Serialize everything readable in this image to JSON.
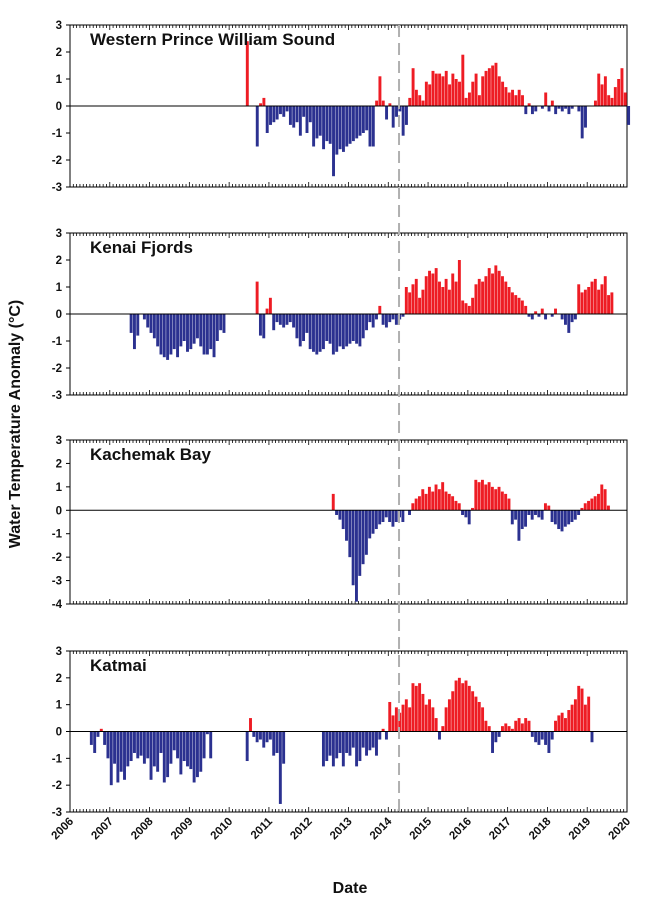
{
  "chart_data": {
    "type": "bar",
    "ylabel": "Water Temperature Anomaly (°C)",
    "xlabel": "Date",
    "x_ticks": [
      "2006",
      "2007",
      "2008",
      "2009",
      "2010",
      "2011",
      "2012",
      "2013",
      "2014",
      "2015",
      "2016",
      "2017",
      "2018",
      "2019",
      "2020"
    ],
    "x_range": [
      2006,
      2020
    ],
    "reference_line_year": 2014.27,
    "colors": {
      "positive": "#ee1c24",
      "negative": "#2b3190",
      "axis": "#000000",
      "dashed_line": "#b0b0b0"
    },
    "panels": [
      {
        "title": "Western Prince William Sound",
        "ylim": [
          -3,
          3
        ],
        "yticks": [
          "-3",
          "-2",
          "-1",
          "0",
          "1",
          "2",
          "3"
        ],
        "start": 2010.42,
        "values": [
          2.4,
          0,
          0,
          -1.5,
          0.1,
          0.3,
          -1.0,
          -0.7,
          -0.6,
          -0.5,
          -0.3,
          -0.4,
          -0.2,
          -0.7,
          -0.8,
          -0.6,
          -1.1,
          -0.4,
          -1.0,
          -0.6,
          -1.5,
          -1.2,
          -1.1,
          -1.6,
          -1.3,
          -1.4,
          -2.6,
          -1.8,
          -1.6,
          -1.7,
          -1.5,
          -1.4,
          -1.3,
          -1.2,
          -1.1,
          -1.0,
          -0.9,
          -1.5,
          -1.5,
          0.2,
          1.1,
          0.2,
          -0.5,
          0.1,
          -0.8,
          -0.4,
          -0.2,
          -1.1,
          -0.7,
          0.3,
          1.4,
          0.6,
          0.4,
          0.2,
          0.9,
          0.8,
          1.3,
          1.2,
          1.2,
          1.1,
          1.3,
          0.8,
          1.2,
          1.0,
          0.9,
          1.9,
          0.3,
          0.5,
          0.9,
          1.2,
          0.4,
          1.1,
          1.3,
          1.4,
          1.5,
          1.6,
          1.1,
          0.9,
          0.7,
          0.5,
          0.6,
          0.4,
          0.6,
          0.4,
          -0.3,
          0.1,
          -0.3,
          -0.2,
          0.0,
          -0.1,
          0.5,
          -0.2,
          0.2,
          -0.3,
          -0.1,
          -0.2,
          -0.1,
          -0.3,
          -0.1,
          0.0,
          -0.2,
          -1.2,
          -0.8,
          0.0,
          0.0,
          0.2,
          1.2,
          0.8,
          1.1,
          0.4,
          0.3,
          0.7,
          1.0,
          1.4,
          0.5,
          -0.7
        ]
      },
      {
        "title": "Kenai Fjords",
        "ylim": [
          -3,
          3
        ],
        "yticks": [
          "-3",
          "-2",
          "-1",
          "0",
          "1",
          "2",
          "3"
        ],
        "start": 2007.5,
        "values": [
          -0.7,
          -1.3,
          -0.8,
          0,
          -0.2,
          -0.5,
          -0.7,
          -0.9,
          -1.2,
          -1.5,
          -1.6,
          -1.7,
          -1.5,
          -1.3,
          -1.6,
          -1.2,
          -1.0,
          -1.4,
          -1.3,
          -1.1,
          -0.9,
          -1.2,
          -1.5,
          -1.5,
          -1.3,
          -1.6,
          -1.0,
          -0.6,
          -0.7,
          null,
          null,
          null,
          null,
          null,
          null,
          null,
          null,
          null,
          1.2,
          -0.8,
          -0.9,
          0.2,
          0.6,
          -0.6,
          -0.3,
          -0.4,
          -0.5,
          -0.4,
          -0.3,
          -0.5,
          -0.9,
          -1.2,
          -1.0,
          -0.7,
          -1.3,
          -1.4,
          -1.5,
          -1.4,
          -1.3,
          -1.0,
          -1.1,
          -1.5,
          -1.4,
          -1.2,
          -1.3,
          -1.2,
          -1.1,
          -1.0,
          -1.1,
          -1.2,
          -0.9,
          -0.6,
          -0.3,
          -0.5,
          -0.2,
          0.3,
          -0.4,
          -0.5,
          -0.3,
          -0.2,
          -0.4,
          -0.2,
          -0.1,
          1.0,
          0.8,
          1.1,
          1.3,
          0.6,
          0.9,
          1.4,
          1.6,
          1.5,
          1.7,
          1.2,
          1.0,
          1.3,
          0.9,
          1.5,
          1.2,
          2.0,
          0.5,
          0.4,
          0.3,
          0.6,
          1.1,
          1.3,
          1.2,
          1.4,
          1.7,
          1.5,
          1.8,
          1.6,
          1.4,
          1.2,
          1.0,
          0.8,
          0.7,
          0.6,
          0.5,
          0.3,
          -0.1,
          -0.2,
          0.1,
          -0.1,
          0.2,
          -0.2,
          0.0,
          -0.1,
          0.2,
          0.0,
          -0.2,
          -0.4,
          -0.7,
          -0.3,
          -0.2,
          1.1,
          0.8,
          0.9,
          1.0,
          1.2,
          1.3,
          0.9,
          1.1,
          1.4,
          0.7,
          0.8
        ]
      },
      {
        "title": "Kachemak Bay",
        "ylim": [
          -4,
          3
        ],
        "yticks": [
          "-4",
          "-3",
          "-2",
          "-1",
          "0",
          "1",
          "2",
          "3"
        ],
        "start": 2012.58,
        "values": [
          0.7,
          -0.2,
          -0.4,
          -0.8,
          -1.3,
          -2.0,
          -3.2,
          -3.9,
          -2.8,
          -2.3,
          -1.9,
          -1.2,
          -1.0,
          -0.8,
          -0.6,
          -0.5,
          -0.3,
          -0.5,
          -0.7,
          -0.5,
          -0.3,
          -0.5,
          0.0,
          -0.2,
          0.3,
          0.5,
          0.6,
          0.9,
          0.7,
          1.0,
          0.8,
          1.1,
          0.9,
          1.2,
          0.8,
          0.7,
          0.6,
          0.4,
          0.3,
          -0.2,
          -0.3,
          -0.6,
          0.1,
          1.3,
          1.2,
          1.3,
          1.1,
          1.2,
          1.0,
          0.9,
          1.0,
          0.8,
          0.7,
          0.5,
          -0.6,
          -0.4,
          -1.3,
          -0.8,
          -0.7,
          -0.2,
          -0.4,
          -0.2,
          -0.3,
          -0.4,
          0.3,
          0.2,
          -0.5,
          -0.6,
          -0.8,
          -0.9,
          -0.7,
          -0.6,
          -0.5,
          -0.4,
          -0.2,
          0.1,
          0.3,
          0.4,
          0.5,
          0.6,
          0.7,
          1.1,
          0.9,
          0.2
        ]
      },
      {
        "title": "Katmai",
        "ylim": [
          -3,
          3
        ],
        "yticks": [
          "-3",
          "-2",
          "-1",
          "0",
          "1",
          "2",
          "3"
        ],
        "start": 2006.5,
        "values": [
          -0.5,
          -0.8,
          -0.2,
          0.1,
          -0.5,
          -1.0,
          -2.0,
          -1.2,
          -1.9,
          -1.5,
          -1.8,
          -1.3,
          -1.1,
          -0.8,
          -1.0,
          -0.9,
          -1.2,
          -1.0,
          -1.8,
          -1.3,
          -1.5,
          -0.8,
          -1.9,
          -1.7,
          -1.2,
          -0.7,
          -1.0,
          -1.6,
          -1.1,
          -1.3,
          -1.4,
          -1.9,
          -1.7,
          -1.5,
          -1.0,
          -0.1,
          -1.0,
          null,
          null,
          null,
          null,
          null,
          null,
          null,
          null,
          null,
          null,
          -1.1,
          0.5,
          -0.2,
          -0.4,
          -0.3,
          -0.6,
          -0.4,
          -0.3,
          -0.9,
          -0.8,
          -2.7,
          -1.2,
          null,
          null,
          null,
          null,
          null,
          null,
          null,
          null,
          null,
          null,
          null,
          -1.3,
          -1.1,
          -0.9,
          -1.3,
          -1.0,
          -0.8,
          -1.3,
          -0.8,
          -0.9,
          -0.6,
          -1.3,
          -1.1,
          -0.6,
          -0.9,
          -0.7,
          -0.6,
          -0.9,
          -0.3,
          0.1,
          -0.3,
          1.1,
          0.6,
          0.9,
          0.7,
          1.0,
          1.2,
          0.9,
          1.8,
          1.7,
          1.8,
          1.4,
          1.0,
          1.2,
          0.9,
          0.5,
          -0.3,
          0.2,
          0.9,
          1.2,
          1.5,
          1.9,
          2.0,
          1.8,
          1.9,
          1.7,
          1.5,
          1.3,
          1.1,
          0.9,
          0.4,
          0.2,
          -0.8,
          -0.4,
          -0.2,
          0.2,
          0.3,
          0.2,
          0.1,
          0.4,
          0.5,
          0.3,
          0.5,
          0.4,
          -0.2,
          -0.4,
          -0.5,
          -0.3,
          -0.5,
          -0.8,
          -0.3,
          0.4,
          0.6,
          0.7,
          0.5,
          0.8,
          1.0,
          1.2,
          1.7,
          1.6,
          1.0,
          1.3,
          -0.4
        ]
      }
    ]
  }
}
